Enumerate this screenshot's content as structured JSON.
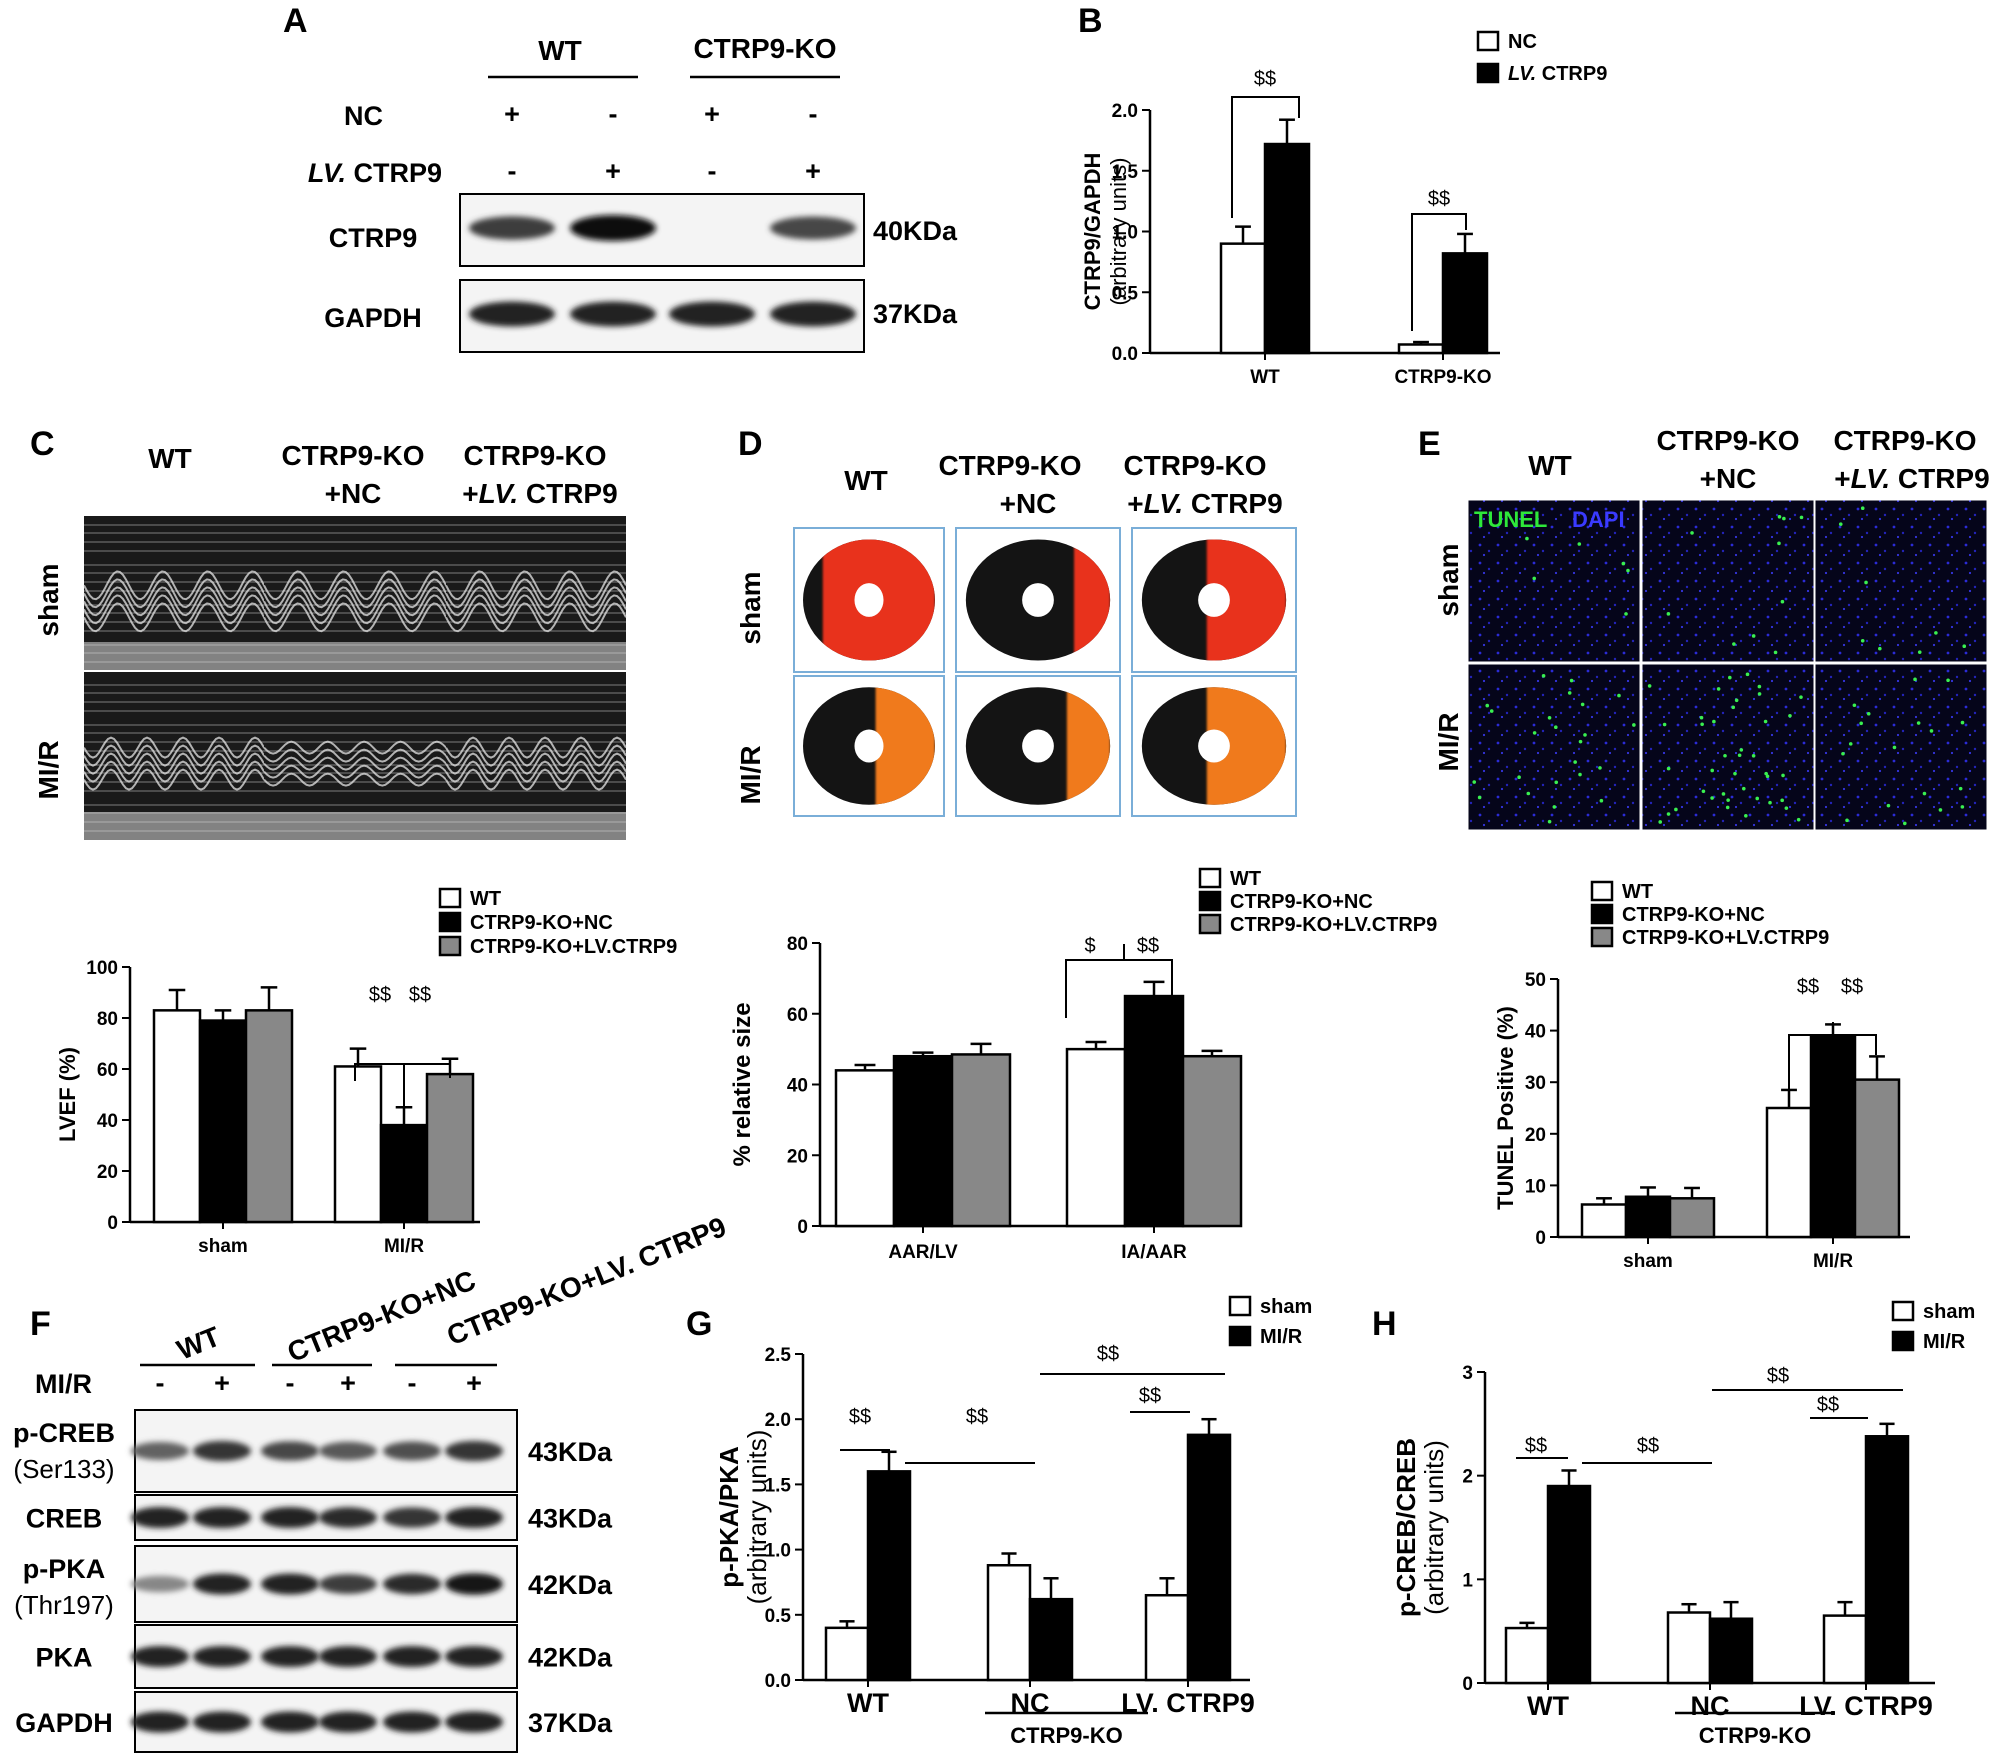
{
  "panels": {
    "A": {
      "letter": "A",
      "groups": [
        "WT",
        "CTRP9-KO"
      ],
      "rows": [
        {
          "label": "NC",
          "italic_prefix": "",
          "signs": [
            "+",
            "-",
            "+",
            "-"
          ]
        },
        {
          "label": " CTRP9",
          "italic_prefix": "LV.",
          "signs": [
            "-",
            "+",
            "-",
            "+"
          ]
        }
      ],
      "blots": [
        {
          "protein": "CTRP9",
          "size": "40KDa",
          "intensity": [
            0.75,
            1.0,
            0.0,
            0.7
          ]
        },
        {
          "protein": "GAPDH",
          "size": "37KDa",
          "intensity": [
            0.9,
            0.9,
            0.9,
            0.9
          ]
        }
      ]
    },
    "B": {
      "letter": "B"
    },
    "C": {
      "letter": "C",
      "columns": [
        "WT",
        "CTRP9-KO",
        "+NC",
        "CTRP9-KO",
        "+",
        "LV.",
        " CTRP9"
      ],
      "rows": [
        "sham",
        "MI/R"
      ]
    },
    "D": {
      "letter": "D",
      "columns": [
        "WT",
        "CTRP9-KO",
        "+NC",
        "CTRP9-KO",
        "+",
        "LV.",
        " CTRP9"
      ],
      "rows": [
        "sham",
        "MI/R"
      ]
    },
    "E": {
      "letter": "E",
      "columns": [
        "WT",
        "CTRP9-KO",
        "+NC",
        "CTRP9-KO",
        "+",
        "LV.",
        " CTRP9"
      ],
      "rows": [
        "sham",
        "MI/R"
      ],
      "stains": [
        "TUNEL",
        "DAPI"
      ]
    },
    "F": {
      "letter": "F",
      "groups": [
        "WT",
        "CTRP9-KO+NC",
        "CTRP9-KO+LV. CTRP9"
      ],
      "treatment_label": "MI/R",
      "treatment_signs": [
        "-",
        "+",
        "-",
        "+",
        "-",
        "+"
      ],
      "blots": [
        {
          "protein": "p-CREB",
          "sub": "(Ser133)",
          "size": "43KDa",
          "intensity": [
            0.55,
            0.8,
            0.7,
            0.6,
            0.65,
            0.8
          ]
        },
        {
          "protein": "CREB",
          "sub": "",
          "size": "43KDa",
          "intensity": [
            0.9,
            0.9,
            0.9,
            0.85,
            0.8,
            0.9
          ]
        },
        {
          "protein": "p-PKA",
          "sub": "(Thr197)",
          "size": "42KDa",
          "intensity": [
            0.35,
            0.9,
            0.9,
            0.75,
            0.85,
            0.95
          ]
        },
        {
          "protein": "PKA",
          "sub": "",
          "size": "42KDa",
          "intensity": [
            0.9,
            0.9,
            0.9,
            0.9,
            0.9,
            0.9
          ]
        },
        {
          "protein": "GAPDH",
          "sub": "",
          "size": "37KDa",
          "intensity": [
            0.9,
            0.9,
            0.9,
            0.9,
            0.9,
            0.9
          ]
        }
      ]
    },
    "G": {
      "letter": "G"
    },
    "H": {
      "letter": "H"
    }
  },
  "chart_data": [
    {
      "id": "B",
      "type": "bar",
      "ylabel_line1": "CTRP9/GAPDH",
      "ylabel_line2": "(arbitrary units)",
      "categories": [
        "WT",
        "CTRP9-KO"
      ],
      "ylim": [
        0,
        2.0
      ],
      "yticks": [
        "0.0",
        "0.5",
        "1.0",
        "1.5",
        "2.0"
      ],
      "ytick_values": [
        0,
        0.5,
        1.0,
        1.5,
        2.0
      ],
      "series": [
        {
          "name": "NC",
          "italic_prefix": "",
          "color": "#ffffff",
          "values": [
            0.9,
            0.07
          ],
          "errors": [
            0.14,
            0.02
          ]
        },
        {
          "name": " CTRP9",
          "italic_prefix": "LV.",
          "color": "#000000",
          "values": [
            1.72,
            0.82
          ],
          "errors": [
            0.2,
            0.16
          ]
        }
      ],
      "significance": [
        {
          "text": "$$"
        },
        {
          "text": "$$"
        }
      ]
    },
    {
      "id": "LVEF",
      "type": "bar",
      "ylabel": "LVEF (%)",
      "categories": [
        "sham",
        "MI/R"
      ],
      "ylim": [
        0,
        100
      ],
      "yticks": [
        "0",
        "20",
        "40",
        "60",
        "80",
        "100"
      ],
      "ytick_values": [
        0,
        20,
        40,
        60,
        80,
        100
      ],
      "series": [
        {
          "name": "WT",
          "color": "#ffffff",
          "values": [
            83,
            61
          ],
          "errors": [
            8,
            7
          ]
        },
        {
          "name": "CTRP9-KO+NC",
          "color": "#000000",
          "values": [
            79,
            38
          ],
          "errors": [
            4,
            7
          ]
        },
        {
          "name": "CTRP9-KO+LV.CTRP9",
          "color": "#888888",
          "values": [
            83,
            58
          ],
          "errors": [
            9,
            6
          ]
        }
      ],
      "significance": [
        {
          "text": "$$"
        },
        {
          "text": "$$"
        }
      ]
    },
    {
      "id": "Infarct",
      "type": "bar",
      "ylabel": "% relative size",
      "categories": [
        "AAR/LV",
        "IA/AAR"
      ],
      "ylim": [
        0,
        80
      ],
      "yticks": [
        "0",
        "20",
        "40",
        "60",
        "80"
      ],
      "ytick_values": [
        0,
        20,
        40,
        60,
        80
      ],
      "series": [
        {
          "name": "WT",
          "color": "#ffffff",
          "values": [
            44,
            50
          ],
          "errors": [
            1.5,
            2
          ]
        },
        {
          "name": "CTRP9-KO+NC",
          "color": "#000000",
          "values": [
            48,
            65
          ],
          "errors": [
            1,
            4
          ]
        },
        {
          "name": "CTRP9-KO+LV.CTRP9",
          "color": "#888888",
          "values": [
            48.5,
            48
          ],
          "errors": [
            3,
            1.5
          ]
        }
      ],
      "significance": [
        {
          "text": "$"
        },
        {
          "text": "$$"
        }
      ]
    },
    {
      "id": "TUNEL",
      "type": "bar",
      "ylabel": "TUNEL Positive (%)",
      "categories": [
        "sham",
        "MI/R"
      ],
      "ylim": [
        0,
        50
      ],
      "yticks": [
        "0",
        "10",
        "20",
        "30",
        "40",
        "50"
      ],
      "ytick_values": [
        0,
        10,
        20,
        30,
        40,
        50
      ],
      "series": [
        {
          "name": "WT",
          "color": "#ffffff",
          "values": [
            6.3,
            25
          ],
          "errors": [
            1.2,
            3.5
          ]
        },
        {
          "name": "CTRP9-KO+NC",
          "color": "#000000",
          "values": [
            7.8,
            39
          ],
          "errors": [
            1.8,
            2.2
          ]
        },
        {
          "name": "CTRP9-KO+LV.CTRP9",
          "color": "#888888",
          "values": [
            7.5,
            30.5
          ],
          "errors": [
            2,
            4.5
          ]
        }
      ],
      "significance": [
        {
          "text": "$$"
        },
        {
          "text": "$$"
        }
      ]
    },
    {
      "id": "G",
      "type": "bar",
      "ylabel_line1": "p-PKA/PKA",
      "ylabel_line2": "(arbitrary units)",
      "categories": [
        "WT",
        "NC",
        "LV. CTRP9"
      ],
      "group_label": "CTRP9-KO",
      "ylim": [
        0,
        2.5
      ],
      "yticks": [
        "0.0",
        "0.5",
        "1.0",
        "1.5",
        "2.0",
        "2.5"
      ],
      "ytick_values": [
        0,
        0.5,
        1.0,
        1.5,
        2.0,
        2.5
      ],
      "series": [
        {
          "name": "sham",
          "color": "#ffffff",
          "values": [
            0.4,
            0.88,
            0.65
          ],
          "errors": [
            0.05,
            0.09,
            0.13
          ]
        },
        {
          "name": "MI/R",
          "color": "#000000",
          "values": [
            1.6,
            0.62,
            1.88
          ],
          "errors": [
            0.15,
            0.16,
            0.12
          ]
        }
      ],
      "significance": [
        {
          "text": "$$"
        },
        {
          "text": "$$"
        },
        {
          "text": "$$"
        },
        {
          "text": "$$"
        }
      ]
    },
    {
      "id": "H",
      "type": "bar",
      "ylabel_line1": "p-CREB/CREB",
      "ylabel_line2": "(arbitrary units)",
      "categories": [
        "WT",
        "NC",
        "LV. CTRP9"
      ],
      "group_label": "CTRP9-KO",
      "ylim": [
        0,
        3
      ],
      "yticks": [
        "0",
        "1",
        "2",
        "3"
      ],
      "ytick_values": [
        0,
        1,
        2,
        3
      ],
      "series": [
        {
          "name": "sham",
          "color": "#ffffff",
          "values": [
            0.53,
            0.68,
            0.65
          ],
          "errors": [
            0.05,
            0.08,
            0.13
          ]
        },
        {
          "name": "MI/R",
          "color": "#000000",
          "values": [
            1.9,
            0.62,
            2.38
          ],
          "errors": [
            0.15,
            0.16,
            0.12
          ]
        }
      ],
      "significance": [
        {
          "text": "$$"
        },
        {
          "text": "$$"
        },
        {
          "text": "$$"
        },
        {
          "text": "$$"
        }
      ]
    }
  ]
}
